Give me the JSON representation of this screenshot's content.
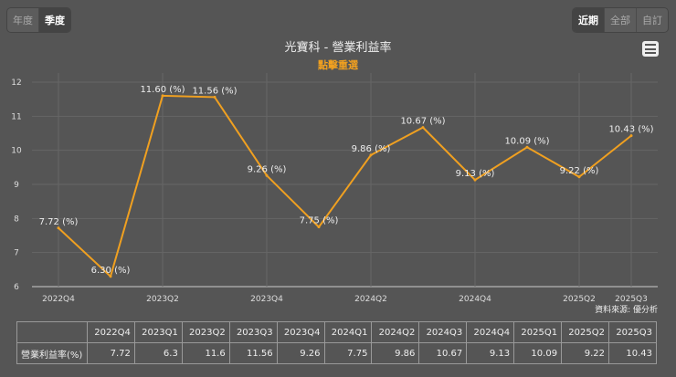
{
  "controls": {
    "period_type": [
      "年度",
      "季度"
    ],
    "period_type_selected": "季度",
    "range": [
      "近期",
      "全部",
      "自訂"
    ],
    "range_selected": "近期"
  },
  "title": "光寶科 - 營業利益率",
  "subtitle": "點擊重選",
  "source": "資料來源: 優分析",
  "chart_data": {
    "type": "line",
    "title": "光寶科 - 營業利益率",
    "categories": [
      "2022Q4",
      "2023Q1",
      "2023Q2",
      "2023Q3",
      "2023Q4",
      "2024Q1",
      "2024Q2",
      "2024Q3",
      "2024Q4",
      "2025Q1",
      "2025Q2",
      "2025Q3"
    ],
    "x_tick_labels": [
      "2022Q4",
      "2023Q2",
      "2023Q4",
      "2024Q2",
      "2024Q4",
      "2025Q2",
      "2025Q3"
    ],
    "series": [
      {
        "name": "營業利益率(%)",
        "values": [
          7.72,
          6.3,
          11.6,
          11.56,
          9.26,
          7.75,
          9.86,
          10.67,
          9.13,
          10.09,
          9.22,
          10.43
        ],
        "color": "#f0a020"
      }
    ],
    "data_labels": [
      "7.72 (%)",
      "6.30 (%)",
      "11.60 (%)",
      "11.56 (%)",
      "9.26 (%)",
      "7.75 (%)",
      "9.86 (%)",
      "10.67 (%)",
      "9.13 (%)",
      "10.09 (%)",
      "9.22 (%)",
      "10.43 (%)"
    ],
    "ylim": [
      6,
      12
    ],
    "y_ticks": [
      6,
      7,
      8,
      9,
      10,
      11,
      12
    ],
    "grid": true
  },
  "table": {
    "row_label": "營業利益率(%)",
    "values": [
      "7.72",
      "6.3",
      "11.6",
      "11.56",
      "9.26",
      "7.75",
      "9.86",
      "10.67",
      "9.13",
      "10.09",
      "9.22",
      "10.43"
    ]
  }
}
